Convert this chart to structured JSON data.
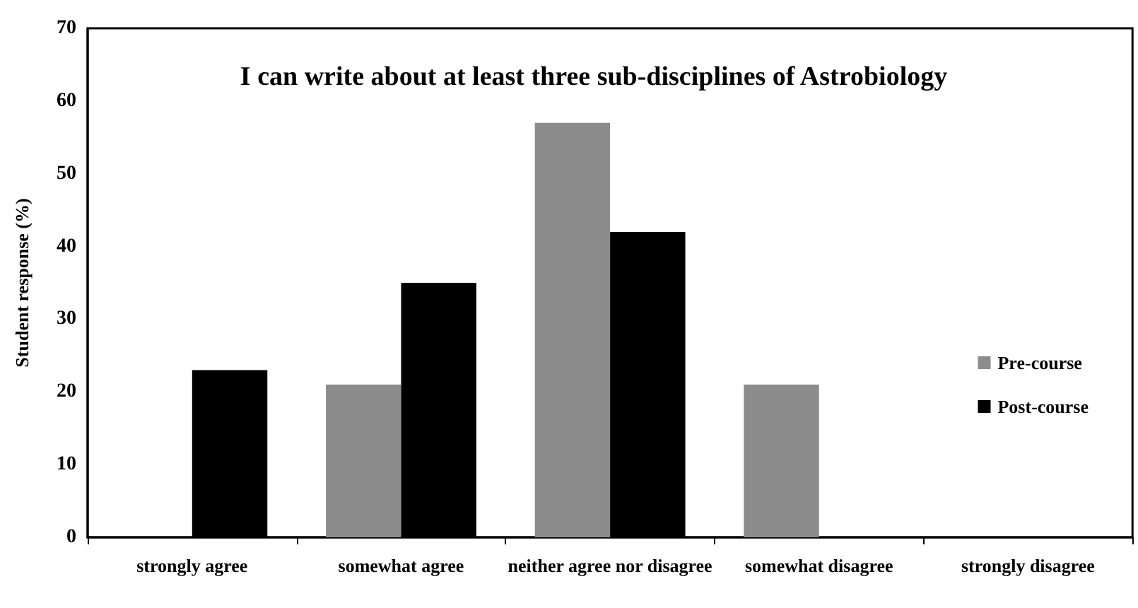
{
  "chart_data": {
    "type": "bar",
    "title": "I can write about at least three sub-disciplines of Astrobiology",
    "ylabel": "Student response (%)",
    "categories": [
      "strongly agree",
      "somewhat agree",
      "neither agree nor disagree",
      "somewhat disagree",
      "strongly disagree"
    ],
    "series": [
      {
        "name": "Pre-course",
        "color": "#8c8c8c",
        "values": [
          0,
          21,
          57,
          21,
          0
        ]
      },
      {
        "name": "Post-course",
        "color": "#000000",
        "values": [
          23,
          35,
          42,
          0,
          0
        ]
      }
    ],
    "ylim": [
      0,
      70
    ],
    "yticks": [
      0,
      10,
      20,
      30,
      40,
      50,
      60,
      70
    ],
    "grid": false,
    "legend": "right"
  }
}
